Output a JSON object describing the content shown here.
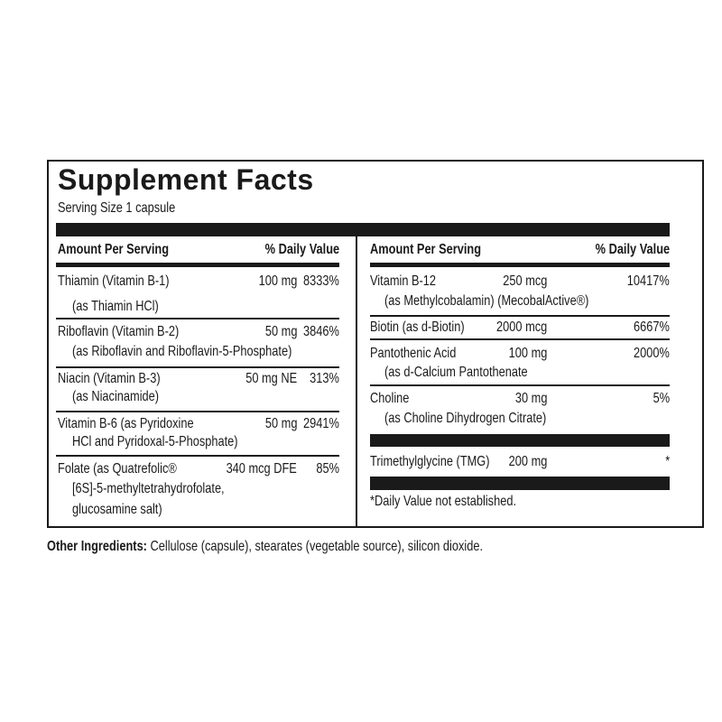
{
  "title": "Supplement Facts",
  "serving_size": "Serving Size 1 capsule",
  "header": {
    "amount": "Amount Per Serving",
    "dv": "% Daily Value"
  },
  "left": [
    {
      "name": "Thiamin (Vitamin B-1)",
      "sub": [
        "(as Thiamin HCl)"
      ],
      "amount": "100 mg",
      "dv": "8333%"
    },
    {
      "name": "Riboflavin (Vitamin B-2)",
      "sub": [
        "(as Riboflavin and Riboflavin-5-Phosphate)"
      ],
      "amount": "50 mg",
      "dv": "3846%"
    },
    {
      "name": "Niacin (Vitamin B-3)",
      "sub": [
        "(as Niacinamide)"
      ],
      "amount": "50 mg NE",
      "dv": "313%"
    },
    {
      "name": "Vitamin B-6 (as Pyridoxine",
      "sub": [
        "HCl and Pyridoxal-5-Phosphate)"
      ],
      "amount": "50 mg",
      "dv": "2941%"
    },
    {
      "name": "Folate (as Quatrefolic®",
      "sub": [
        "[6S]-5-methyltetrahydrofolate,",
        "glucosamine salt)"
      ],
      "amount": "340 mcg DFE",
      "dv": "85%"
    }
  ],
  "right": [
    {
      "name": "Vitamin B-12",
      "sub": [
        "(as Methylcobalamin) (MecobalActive®)"
      ],
      "amount": "250 mcg",
      "dv": "10417%"
    },
    {
      "name": "Biotin (as d-Biotin)",
      "sub": [],
      "amount": "2000 mcg",
      "dv": "6667%"
    },
    {
      "name": "Pantothenic Acid",
      "sub": [
        "(as d-Calcium Pantothenate"
      ],
      "amount": "100 mg",
      "dv": "2000%"
    },
    {
      "name": "Choline",
      "sub": [
        "(as Choline Dihydrogen Citrate)"
      ],
      "amount": "30 mg",
      "dv": "5%"
    },
    {
      "name": "Trimethylglycine (TMG)",
      "sub": [],
      "amount": "200 mg",
      "dv": "*"
    }
  ],
  "footnote": "*Daily Value not established.",
  "other": {
    "label": "Other Ingredients:",
    "text": " Cellulose (capsule), stearates (vegetable source), silicon dioxide."
  }
}
